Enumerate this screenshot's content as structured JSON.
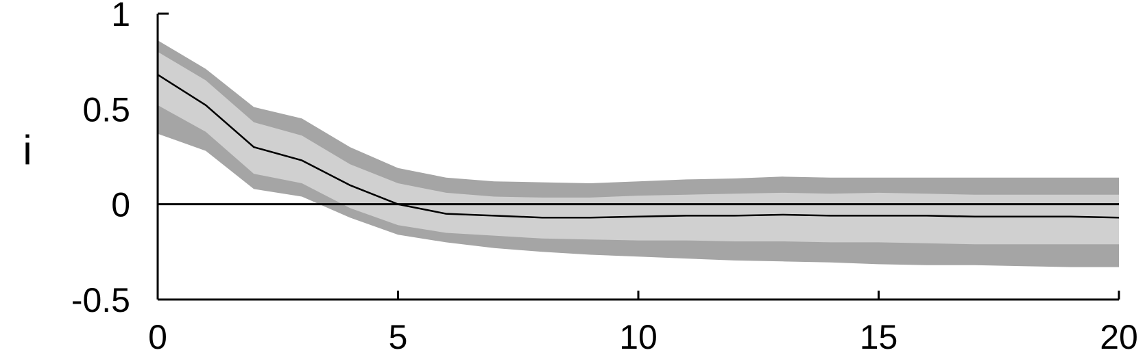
{
  "chart_data": {
    "type": "area",
    "title": "",
    "xlabel": "",
    "ylabel": "i",
    "xlim": [
      0,
      20
    ],
    "ylim": [
      -0.5,
      1
    ],
    "x_ticks": [
      0,
      5,
      10,
      15,
      20
    ],
    "y_ticks": [
      1,
      0.5,
      0,
      -0.5
    ],
    "x_tick_labels": [
      "0",
      "5",
      "10",
      "15",
      "20"
    ],
    "y_tick_labels": [
      "1",
      "0.5",
      "0",
      "-0.5"
    ],
    "grid": false,
    "legend": "none",
    "x": [
      0,
      1,
      2,
      3,
      4,
      5,
      6,
      7,
      8,
      9,
      10,
      11,
      12,
      13,
      14,
      15,
      16,
      17,
      18,
      19,
      20
    ],
    "series": [
      {
        "role": "outer_band_upper",
        "values": [
          0.86,
          0.71,
          0.51,
          0.45,
          0.3,
          0.19,
          0.14,
          0.12,
          0.115,
          0.11,
          0.12,
          0.13,
          0.135,
          0.145,
          0.14,
          0.14,
          0.14,
          0.14,
          0.14,
          0.14,
          0.14
        ]
      },
      {
        "role": "inner_band_upper",
        "values": [
          0.8,
          0.65,
          0.43,
          0.36,
          0.21,
          0.11,
          0.06,
          0.04,
          0.035,
          0.035,
          0.045,
          0.05,
          0.055,
          0.06,
          0.055,
          0.06,
          0.055,
          0.05,
          0.05,
          0.05,
          0.05
        ]
      },
      {
        "role": "median",
        "values": [
          0.68,
          0.52,
          0.3,
          0.23,
          0.1,
          0.0,
          -0.05,
          -0.06,
          -0.07,
          -0.07,
          -0.065,
          -0.06,
          -0.06,
          -0.055,
          -0.06,
          -0.06,
          -0.06,
          -0.065,
          -0.065,
          -0.065,
          -0.07
        ]
      },
      {
        "role": "inner_band_lower",
        "values": [
          0.52,
          0.38,
          0.16,
          0.11,
          -0.02,
          -0.11,
          -0.15,
          -0.165,
          -0.18,
          -0.185,
          -0.19,
          -0.19,
          -0.195,
          -0.195,
          -0.2,
          -0.2,
          -0.205,
          -0.21,
          -0.21,
          -0.21,
          -0.21
        ]
      },
      {
        "role": "outer_band_lower",
        "values": [
          0.37,
          0.28,
          0.08,
          0.04,
          -0.07,
          -0.16,
          -0.2,
          -0.23,
          -0.25,
          -0.265,
          -0.275,
          -0.285,
          -0.295,
          -0.3,
          -0.305,
          -0.315,
          -0.32,
          -0.32,
          -0.325,
          -0.33,
          -0.33
        ]
      }
    ],
    "reference_line": 0,
    "colors": {
      "outer_band": "#a5a5a5",
      "inner_band": "#d0d0d0",
      "median": "#000000",
      "axis": "#000000"
    }
  }
}
